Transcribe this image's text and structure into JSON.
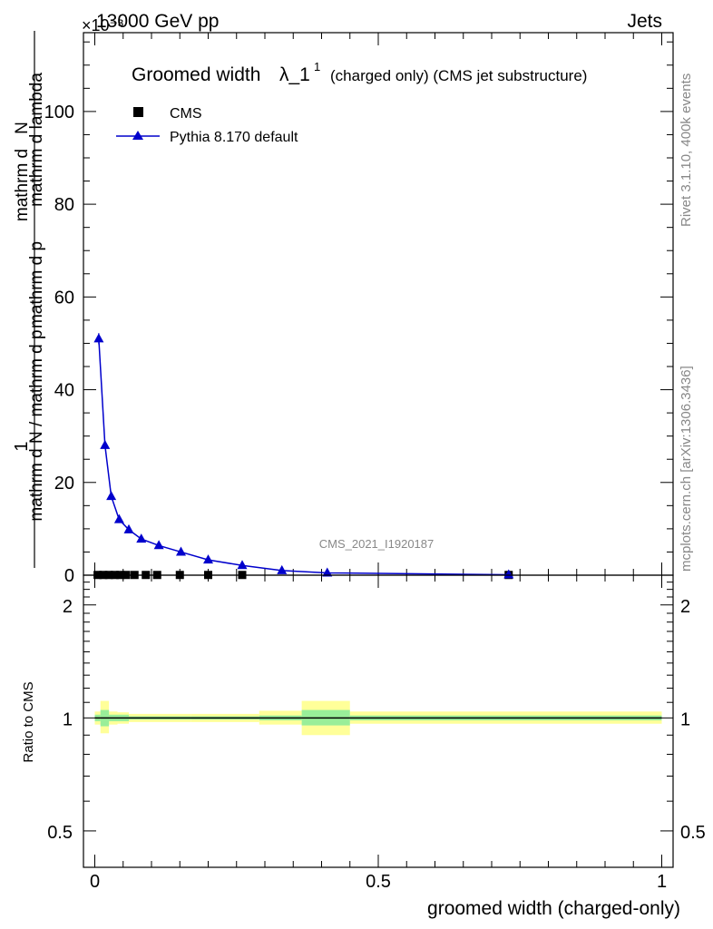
{
  "header": {
    "left": "13000 GeV pp",
    "right": "Jets",
    "exponent": "×10⁻³"
  },
  "side_labels": {
    "rivet": "Rivet 3.1.10,  400k events",
    "mcplots": "mcplots.cern.ch [arXiv:1306.3436]"
  },
  "watermark": "CMS_2021_I1920187",
  "chart_data": [
    {
      "type": "line",
      "title_main": "Groomed width",
      "title_sym": "λ_1",
      "title_sup": "1",
      "title_rest": "(charged only) (CMS jet substructure)",
      "ylabel_num": "1",
      "ylabel_den": "mathrm d N / mathrm d p_T mathrm d p_T mathrm d lambda",
      "ylabel_den_line1": "mathrm d N / mathrm d p",
      "ylabel_den_line2": "mathrm d p",
      "ylabel_den_line3": "mathrm d lambda",
      "ylabel_num_line": "mathrm d",
      "ylabel_num_n": "N",
      "xlim": [
        -0.02,
        1.02
      ],
      "ylim": [
        0,
        117
      ],
      "y_ticks": [
        0,
        20,
        40,
        60,
        80,
        100
      ],
      "y_tick_labels": [
        "0",
        "20",
        "40",
        "60",
        "80",
        "100"
      ],
      "legend": {
        "placement": "top-left",
        "entries": [
          "CMS",
          "Pythia 8.170 default"
        ]
      },
      "series": [
        {
          "name": "CMS",
          "marker": "square",
          "x": [
            0.005,
            0.015,
            0.025,
            0.035,
            0.045,
            0.055,
            0.07,
            0.09,
            0.11,
            0.15,
            0.2,
            0.26,
            0.73
          ],
          "y": [
            0.05,
            0.05,
            0.05,
            0.05,
            0.05,
            0.05,
            0.05,
            0.05,
            0.05,
            0.05,
            0.05,
            0.05,
            0.05
          ]
        },
        {
          "name": "Pythia 8.170 default",
          "marker": "triangle",
          "color": "#0000cc",
          "x": [
            0.007,
            0.018,
            0.029,
            0.043,
            0.06,
            0.082,
            0.113,
            0.152,
            0.2,
            0.26,
            0.33,
            0.41,
            0.73
          ],
          "y": [
            51,
            28,
            17,
            12,
            9.8,
            7.8,
            6.4,
            5.0,
            3.3,
            2.1,
            1.0,
            0.5,
            0.1
          ],
          "err": [
            1.2,
            0.6,
            0.4,
            0.3,
            0.2,
            0.2,
            0.15,
            0.1,
            0.1,
            0.05,
            0.05,
            0.05,
            0.02
          ]
        }
      ]
    },
    {
      "type": "area",
      "ylabel": "Ratio to CMS",
      "xlabel": "groomed width (charged-only)",
      "xlim": [
        -0.02,
        1.02
      ],
      "ylim": [
        0.4,
        2.4
      ],
      "log_y": true,
      "y_ticks": [
        0.5,
        1,
        2
      ],
      "y_tick_labels": [
        "0.5",
        "1",
        "2"
      ],
      "x_ticks": [
        0,
        0.5,
        1
      ],
      "x_tick_labels": [
        "0",
        "0.5",
        "1"
      ],
      "bands_yellow_color": "#ffff99",
      "bands_green_color": "#99ee99",
      "bands": [
        {
          "x0": 0.0,
          "x1": 0.01,
          "y_lo": 0.96,
          "y_hi": 1.04,
          "g_lo": 0.98,
          "g_hi": 1.02
        },
        {
          "x0": 0.01,
          "x1": 0.025,
          "y_lo": 0.91,
          "y_hi": 1.11,
          "g_lo": 0.95,
          "g_hi": 1.05
        },
        {
          "x0": 0.025,
          "x1": 0.04,
          "y_lo": 0.96,
          "y_hi": 1.04,
          "g_lo": 0.98,
          "g_hi": 1.02
        },
        {
          "x0": 0.04,
          "x1": 0.06,
          "y_lo": 0.965,
          "y_hi": 1.035,
          "g_lo": 0.98,
          "g_hi": 1.02
        },
        {
          "x0": 0.06,
          "x1": 0.17,
          "y_lo": 0.975,
          "y_hi": 1.025,
          "g_lo": 0.99,
          "g_hi": 1.01
        },
        {
          "x0": 0.17,
          "x1": 0.29,
          "y_lo": 0.975,
          "y_hi": 1.025,
          "g_lo": 0.99,
          "g_hi": 1.01
        },
        {
          "x0": 0.29,
          "x1": 0.365,
          "y_lo": 0.96,
          "y_hi": 1.045,
          "g_lo": 0.985,
          "g_hi": 1.015
        },
        {
          "x0": 0.365,
          "x1": 0.45,
          "y_lo": 0.9,
          "y_hi": 1.11,
          "g_lo": 0.955,
          "g_hi": 1.05
        },
        {
          "x0": 0.45,
          "x1": 1.0,
          "y_lo": 0.965,
          "y_hi": 1.04,
          "g_lo": 0.985,
          "g_hi": 1.015
        }
      ]
    }
  ]
}
